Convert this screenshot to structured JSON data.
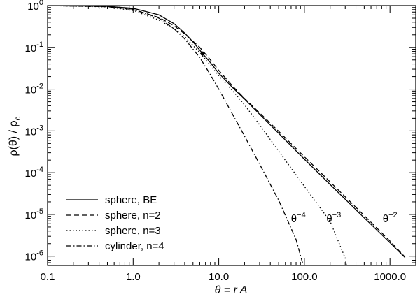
{
  "chart_data": {
    "type": "line",
    "xscale": "log",
    "yscale": "log",
    "xlim": [
      0.1,
      2000
    ],
    "ylim": [
      6e-07,
      1.0
    ],
    "xlabel": "θ = r A",
    "ylabel": "ρ(θ) / ρc",
    "x_tick_values": [
      0.1,
      1.0,
      10.0,
      100.0,
      1000.0
    ],
    "x_tick_labels": [
      "0.1",
      "1.0",
      "10.0",
      "100.0",
      "1000.0"
    ],
    "y_tick_values": [
      1,
      0.1,
      0.01,
      0.001,
      0.0001,
      1e-05,
      1e-06
    ],
    "y_tick_labels": [
      {
        "base": "10",
        "exp": "0"
      },
      {
        "base": "10",
        "exp": "-1"
      },
      {
        "base": "10",
        "exp": "-2"
      },
      {
        "base": "10",
        "exp": "-3"
      },
      {
        "base": "10",
        "exp": "-4"
      },
      {
        "base": "10",
        "exp": "-5"
      },
      {
        "base": "10",
        "exp": "-6"
      }
    ],
    "legend_position": "bottom-left",
    "series": [
      {
        "name": "sphere, BE",
        "style": "solid",
        "points": [
          [
            0.1,
            1.0
          ],
          [
            0.5,
            0.96
          ],
          [
            1.0,
            0.86
          ],
          [
            2.0,
            0.6
          ],
          [
            3.0,
            0.37
          ],
          [
            4.0,
            0.22
          ],
          [
            5.0,
            0.135
          ],
          [
            6.47,
            0.071
          ],
          [
            8.0,
            0.043
          ],
          [
            10.0,
            0.024
          ],
          [
            15.0,
            0.0102
          ],
          [
            20.0,
            0.0058
          ],
          [
            30.0,
            0.0025
          ],
          [
            50.0,
            0.00088
          ],
          [
            100.0,
            0.00021
          ],
          [
            200.0,
            5.2e-05
          ],
          [
            500.0,
            8.3e-06
          ],
          [
            1000.0,
            2.1e-06
          ],
          [
            1500.0,
            9.3e-07
          ]
        ]
      },
      {
        "name": "sphere, n=2",
        "style": "dashed",
        "points": [
          [
            0.1,
            1.0
          ],
          [
            0.5,
            0.94
          ],
          [
            1.0,
            0.8
          ],
          [
            2.0,
            0.52
          ],
          [
            3.0,
            0.33
          ],
          [
            4.0,
            0.21
          ],
          [
            6.0,
            0.1
          ],
          [
            8.0,
            0.05
          ],
          [
            10.0,
            0.028
          ],
          [
            15.0,
            0.011
          ],
          [
            20.0,
            0.006
          ],
          [
            30.0,
            0.0027
          ],
          [
            50.0,
            0.00098
          ],
          [
            100.0,
            0.00024
          ],
          [
            200.0,
            6e-05
          ],
          [
            500.0,
            9.4e-06
          ],
          [
            1000.0,
            2.3e-06
          ],
          [
            1500.0,
            9.5e-07
          ]
        ]
      },
      {
        "name": "sphere, n=3",
        "style": "dotted",
        "points": [
          [
            0.1,
            1.0
          ],
          [
            0.5,
            0.93
          ],
          [
            1.0,
            0.76
          ],
          [
            2.0,
            0.45
          ],
          [
            3.0,
            0.28
          ],
          [
            4.0,
            0.18
          ],
          [
            6.0,
            0.075
          ],
          [
            8.0,
            0.037
          ],
          [
            10.0,
            0.021
          ],
          [
            15.0,
            0.0085
          ],
          [
            20.0,
            0.0042
          ],
          [
            30.0,
            0.0014
          ],
          [
            50.0,
            0.00033
          ],
          [
            100.0,
            4.7e-05
          ],
          [
            200.0,
            6.8e-06
          ],
          [
            300.0,
            9e-07
          ],
          [
            310.0,
            6e-07
          ]
        ]
      },
      {
        "name": "cylinder, n=4",
        "style": "dashdot",
        "points": [
          [
            0.1,
            1.0
          ],
          [
            0.5,
            0.95
          ],
          [
            1.0,
            0.82
          ],
          [
            2.0,
            0.5
          ],
          [
            3.0,
            0.28
          ],
          [
            4.0,
            0.16
          ],
          [
            6.0,
            0.057
          ],
          [
            8.0,
            0.022
          ],
          [
            10.0,
            0.01
          ],
          [
            15.0,
            0.0022
          ],
          [
            20.0,
            0.00075
          ],
          [
            30.0,
            0.00016
          ],
          [
            50.0,
            2.2e-05
          ],
          [
            80.0,
            2.5e-06
          ],
          [
            95.0,
            7e-07
          ]
        ]
      }
    ],
    "marker": {
      "x": 6.47,
      "y": 0.071
    },
    "annotations": [
      {
        "base": "θ",
        "exp": "−4",
        "x": 85,
        "y": 6.5e-06
      },
      {
        "base": "θ",
        "exp": "−3",
        "x": 220,
        "y": 6.5e-06
      },
      {
        "base": "θ",
        "exp": "−2",
        "x": 1000,
        "y": 6.5e-06
      }
    ]
  }
}
